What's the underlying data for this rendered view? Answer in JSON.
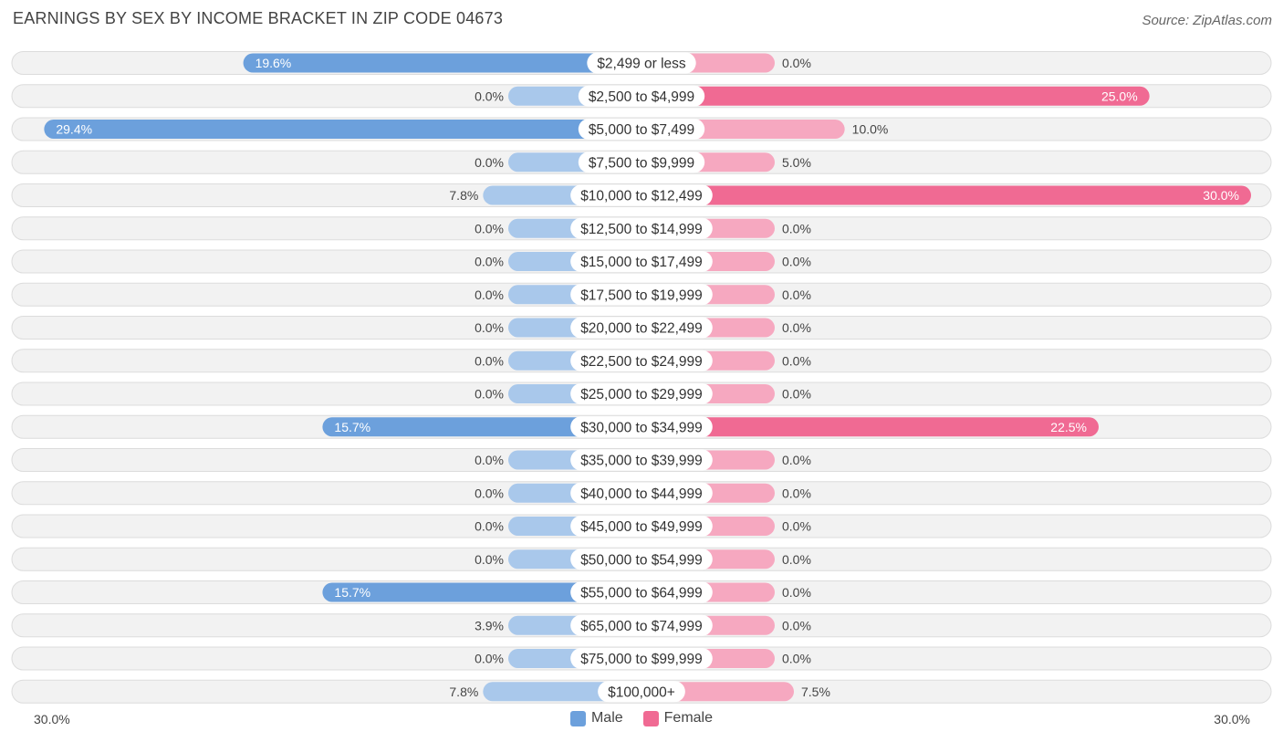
{
  "title": "EARNINGS BY SEX BY INCOME BRACKET IN ZIP CODE 04673",
  "source": "Source: ZipAtlas.com",
  "axis": {
    "left_label": "30.0%",
    "right_label": "30.0%"
  },
  "legend": {
    "male_label": "Male",
    "female_label": "Female"
  },
  "colors": {
    "male_strong": "#6ca0dc",
    "male_light": "#a9c8eb",
    "female_strong": "#f06a93",
    "female_light": "#f6a8c0",
    "row_bg": "#f2f2f2"
  },
  "chart_data": {
    "type": "bar",
    "orientation": "horizontal-diverging",
    "title": "EARNINGS BY SEX BY INCOME BRACKET IN ZIP CODE 04673",
    "xlim": [
      -30,
      30
    ],
    "categories": [
      "$2,499 or less",
      "$2,500 to $4,999",
      "$5,000 to $7,499",
      "$7,500 to $9,999",
      "$10,000 to $12,499",
      "$12,500 to $14,999",
      "$15,000 to $17,499",
      "$17,500 to $19,999",
      "$20,000 to $22,499",
      "$22,500 to $24,999",
      "$25,000 to $29,999",
      "$30,000 to $34,999",
      "$35,000 to $39,999",
      "$40,000 to $44,999",
      "$45,000 to $49,999",
      "$50,000 to $54,999",
      "$55,000 to $64,999",
      "$65,000 to $74,999",
      "$75,000 to $99,999",
      "$100,000+"
    ],
    "series": [
      {
        "name": "Male",
        "values": [
          19.6,
          0.0,
          29.4,
          0.0,
          7.8,
          0.0,
          0.0,
          0.0,
          0.0,
          0.0,
          0.0,
          15.7,
          0.0,
          0.0,
          0.0,
          0.0,
          15.7,
          3.9,
          0.0,
          7.8
        ],
        "labels": [
          "19.6%",
          "0.0%",
          "29.4%",
          "0.0%",
          "7.8%",
          "0.0%",
          "0.0%",
          "0.0%",
          "0.0%",
          "0.0%",
          "0.0%",
          "15.7%",
          "0.0%",
          "0.0%",
          "0.0%",
          "0.0%",
          "15.7%",
          "3.9%",
          "0.0%",
          "7.8%"
        ]
      },
      {
        "name": "Female",
        "values": [
          0.0,
          25.0,
          10.0,
          5.0,
          30.0,
          0.0,
          0.0,
          0.0,
          0.0,
          0.0,
          0.0,
          22.5,
          0.0,
          0.0,
          0.0,
          0.0,
          0.0,
          0.0,
          0.0,
          7.5
        ],
        "labels": [
          "0.0%",
          "25.0%",
          "10.0%",
          "5.0%",
          "30.0%",
          "0.0%",
          "0.0%",
          "0.0%",
          "0.0%",
          "0.0%",
          "0.0%",
          "22.5%",
          "0.0%",
          "0.0%",
          "0.0%",
          "0.0%",
          "0.0%",
          "0.0%",
          "0.0%",
          "7.5%"
        ]
      }
    ]
  }
}
